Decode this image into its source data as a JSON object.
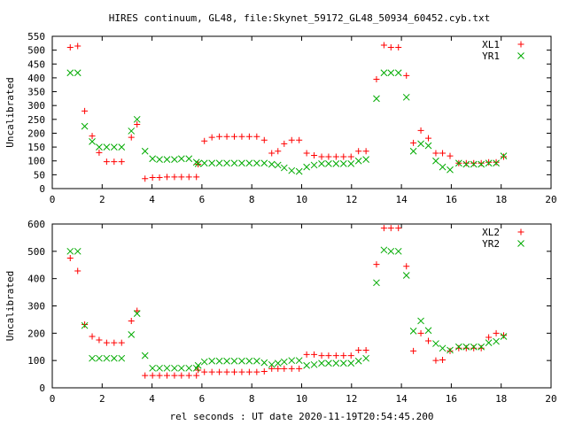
{
  "title": "HIRES continuum, GL48, file:Skynet_59172_GL48_50934_60452.cyb.txt",
  "chart_data": [
    {
      "type": "scatter",
      "ylabel": "Uncalibrated",
      "xlabel": "",
      "xlim": [
        0,
        20
      ],
      "ylim": [
        0,
        550
      ],
      "xticks": [
        0,
        2,
        4,
        6,
        8,
        10,
        12,
        14,
        16,
        18,
        20
      ],
      "yticks": [
        0,
        50,
        100,
        150,
        200,
        250,
        300,
        350,
        400,
        450,
        500,
        550
      ],
      "legend_position": "top-right",
      "series": [
        {
          "name": "XL1",
          "marker": "plus",
          "color": "#ff0000",
          "points": [
            [
              0.72,
              510
            ],
            [
              1.02,
              515
            ],
            [
              1.3,
              280
            ],
            [
              1.6,
              190
            ],
            [
              1.88,
              130
            ],
            [
              2.18,
              97
            ],
            [
              2.48,
              97
            ],
            [
              2.78,
              97
            ],
            [
              3.17,
              185
            ],
            [
              3.4,
              232
            ],
            [
              3.72,
              36
            ],
            [
              4.02,
              40
            ],
            [
              4.3,
              40
            ],
            [
              4.6,
              42
            ],
            [
              4.9,
              42
            ],
            [
              5.18,
              42
            ],
            [
              5.48,
              42
            ],
            [
              5.78,
              42
            ],
            [
              5.85,
              88
            ],
            [
              6.1,
              172
            ],
            [
              6.4,
              185
            ],
            [
              6.7,
              188
            ],
            [
              7.0,
              188
            ],
            [
              7.3,
              188
            ],
            [
              7.6,
              188
            ],
            [
              7.9,
              188
            ],
            [
              8.2,
              188
            ],
            [
              8.5,
              175
            ],
            [
              8.8,
              128
            ],
            [
              9.05,
              135
            ],
            [
              9.3,
              162
            ],
            [
              9.6,
              175
            ],
            [
              9.9,
              175
            ],
            [
              10.2,
              128
            ],
            [
              10.5,
              120
            ],
            [
              10.8,
              115
            ],
            [
              11.08,
              115
            ],
            [
              11.38,
              115
            ],
            [
              11.68,
              115
            ],
            [
              11.98,
              115
            ],
            [
              12.28,
              135
            ],
            [
              12.58,
              135
            ],
            [
              13.0,
              395
            ],
            [
              13.3,
              518
            ],
            [
              13.58,
              510
            ],
            [
              13.88,
              510
            ],
            [
              14.2,
              408
            ],
            [
              14.48,
              165
            ],
            [
              14.78,
              210
            ],
            [
              15.08,
              182
            ],
            [
              15.38,
              128
            ],
            [
              15.65,
              128
            ],
            [
              15.95,
              118
            ],
            [
              16.3,
              92
            ],
            [
              16.6,
              92
            ],
            [
              16.9,
              92
            ],
            [
              17.2,
              92
            ],
            [
              17.5,
              95
            ],
            [
              17.8,
              95
            ],
            [
              18.1,
              115
            ]
          ]
        },
        {
          "name": "YR1",
          "marker": "cross",
          "color": "#00aa00",
          "points": [
            [
              0.72,
              418
            ],
            [
              1.02,
              418
            ],
            [
              1.3,
              225
            ],
            [
              1.6,
              170
            ],
            [
              1.88,
              150
            ],
            [
              2.18,
              150
            ],
            [
              2.48,
              150
            ],
            [
              2.78,
              150
            ],
            [
              3.17,
              208
            ],
            [
              3.4,
              250
            ],
            [
              3.72,
              135
            ],
            [
              4.02,
              108
            ],
            [
              4.3,
              105
            ],
            [
              4.6,
              105
            ],
            [
              4.9,
              105
            ],
            [
              5.18,
              108
            ],
            [
              5.48,
              108
            ],
            [
              5.78,
              95
            ],
            [
              5.85,
              90
            ],
            [
              6.1,
              92
            ],
            [
              6.4,
              92
            ],
            [
              6.7,
              92
            ],
            [
              7.0,
              92
            ],
            [
              7.3,
              92
            ],
            [
              7.6,
              92
            ],
            [
              7.9,
              92
            ],
            [
              8.2,
              92
            ],
            [
              8.5,
              92
            ],
            [
              8.8,
              88
            ],
            [
              9.05,
              85
            ],
            [
              9.3,
              75
            ],
            [
              9.6,
              65
            ],
            [
              9.9,
              62
            ],
            [
              10.2,
              78
            ],
            [
              10.5,
              85
            ],
            [
              10.8,
              90
            ],
            [
              11.08,
              90
            ],
            [
              11.38,
              90
            ],
            [
              11.68,
              90
            ],
            [
              11.98,
              90
            ],
            [
              12.28,
              100
            ],
            [
              12.58,
              105
            ],
            [
              13.0,
              325
            ],
            [
              13.3,
              418
            ],
            [
              13.58,
              418
            ],
            [
              13.88,
              418
            ],
            [
              14.2,
              330
            ],
            [
              14.48,
              135
            ],
            [
              14.78,
              162
            ],
            [
              15.08,
              155
            ],
            [
              15.38,
              100
            ],
            [
              15.65,
              78
            ],
            [
              15.95,
              68
            ],
            [
              16.3,
              92
            ],
            [
              16.6,
              88
            ],
            [
              16.9,
              88
            ],
            [
              17.2,
              88
            ],
            [
              17.5,
              92
            ],
            [
              17.8,
              92
            ],
            [
              18.1,
              118
            ]
          ]
        }
      ]
    },
    {
      "type": "scatter",
      "ylabel": "Uncalibrated",
      "xlabel": "rel seconds : UT date 2020-11-19T20:54:45.200",
      "xlim": [
        0,
        20
      ],
      "ylim": [
        0,
        600
      ],
      "xticks": [
        0,
        2,
        4,
        6,
        8,
        10,
        12,
        14,
        16,
        18,
        20
      ],
      "yticks": [
        0,
        100,
        200,
        300,
        400,
        500,
        600
      ],
      "legend_position": "top-right",
      "series": [
        {
          "name": "XL2",
          "marker": "plus",
          "color": "#ff0000",
          "points": [
            [
              0.72,
              475
            ],
            [
              1.02,
              428
            ],
            [
              1.3,
              232
            ],
            [
              1.6,
              188
            ],
            [
              1.88,
              175
            ],
            [
              2.18,
              165
            ],
            [
              2.48,
              165
            ],
            [
              2.78,
              165
            ],
            [
              3.17,
              245
            ],
            [
              3.4,
              282
            ],
            [
              3.72,
              45
            ],
            [
              4.02,
              45
            ],
            [
              4.3,
              45
            ],
            [
              4.6,
              45
            ],
            [
              4.9,
              45
            ],
            [
              5.18,
              45
            ],
            [
              5.48,
              45
            ],
            [
              5.78,
              45
            ],
            [
              5.85,
              65
            ],
            [
              6.1,
              58
            ],
            [
              6.4,
              58
            ],
            [
              6.7,
              58
            ],
            [
              7.0,
              58
            ],
            [
              7.3,
              58
            ],
            [
              7.6,
              58
            ],
            [
              7.9,
              58
            ],
            [
              8.2,
              58
            ],
            [
              8.5,
              60
            ],
            [
              8.8,
              70
            ],
            [
              9.05,
              70
            ],
            [
              9.3,
              70
            ],
            [
              9.6,
              70
            ],
            [
              9.9,
              70
            ],
            [
              10.2,
              122
            ],
            [
              10.5,
              122
            ],
            [
              10.8,
              118
            ],
            [
              11.08,
              118
            ],
            [
              11.38,
              118
            ],
            [
              11.68,
              118
            ],
            [
              11.98,
              118
            ],
            [
              12.28,
              138
            ],
            [
              12.58,
              138
            ],
            [
              13.0,
              452
            ],
            [
              13.3,
              585
            ],
            [
              13.58,
              585
            ],
            [
              13.88,
              585
            ],
            [
              14.2,
              445
            ],
            [
              14.48,
              135
            ],
            [
              14.78,
              200
            ],
            [
              15.08,
              172
            ],
            [
              15.38,
              100
            ],
            [
              15.65,
              102
            ],
            [
              15.95,
              135
            ],
            [
              16.3,
              145
            ],
            [
              16.6,
              145
            ],
            [
              16.9,
              145
            ],
            [
              17.2,
              145
            ],
            [
              17.5,
              185
            ],
            [
              17.8,
              200
            ],
            [
              18.1,
              192
            ]
          ]
        },
        {
          "name": "YR2",
          "marker": "cross",
          "color": "#00aa00",
          "points": [
            [
              0.72,
              500
            ],
            [
              1.02,
              500
            ],
            [
              1.3,
              228
            ],
            [
              1.6,
              108
            ],
            [
              1.88,
              108
            ],
            [
              2.18,
              108
            ],
            [
              2.48,
              108
            ],
            [
              2.78,
              108
            ],
            [
              3.17,
              195
            ],
            [
              3.4,
              272
            ],
            [
              3.72,
              118
            ],
            [
              4.02,
              72
            ],
            [
              4.3,
              72
            ],
            [
              4.6,
              72
            ],
            [
              4.9,
              72
            ],
            [
              5.18,
              72
            ],
            [
              5.48,
              72
            ],
            [
              5.78,
              72
            ],
            [
              5.85,
              82
            ],
            [
              6.1,
              95
            ],
            [
              6.4,
              98
            ],
            [
              6.7,
              98
            ],
            [
              7.0,
              98
            ],
            [
              7.3,
              98
            ],
            [
              7.6,
              98
            ],
            [
              7.9,
              98
            ],
            [
              8.2,
              98
            ],
            [
              8.5,
              92
            ],
            [
              8.8,
              85
            ],
            [
              9.05,
              90
            ],
            [
              9.3,
              95
            ],
            [
              9.6,
              100
            ],
            [
              9.9,
              100
            ],
            [
              10.2,
              82
            ],
            [
              10.5,
              85
            ],
            [
              10.8,
              90
            ],
            [
              11.08,
              90
            ],
            [
              11.38,
              90
            ],
            [
              11.68,
              90
            ],
            [
              11.98,
              90
            ],
            [
              12.28,
              98
            ],
            [
              12.58,
              108
            ],
            [
              13.0,
              385
            ],
            [
              13.3,
              505
            ],
            [
              13.58,
              500
            ],
            [
              13.88,
              500
            ],
            [
              14.2,
              412
            ],
            [
              14.48,
              208
            ],
            [
              14.78,
              245
            ],
            [
              15.08,
              210
            ],
            [
              15.38,
              162
            ],
            [
              15.65,
              145
            ],
            [
              15.95,
              138
            ],
            [
              16.3,
              150
            ],
            [
              16.6,
              150
            ],
            [
              16.9,
              150
            ],
            [
              17.2,
              150
            ],
            [
              17.5,
              165
            ],
            [
              17.8,
              170
            ],
            [
              18.1,
              188
            ]
          ]
        }
      ]
    }
  ]
}
